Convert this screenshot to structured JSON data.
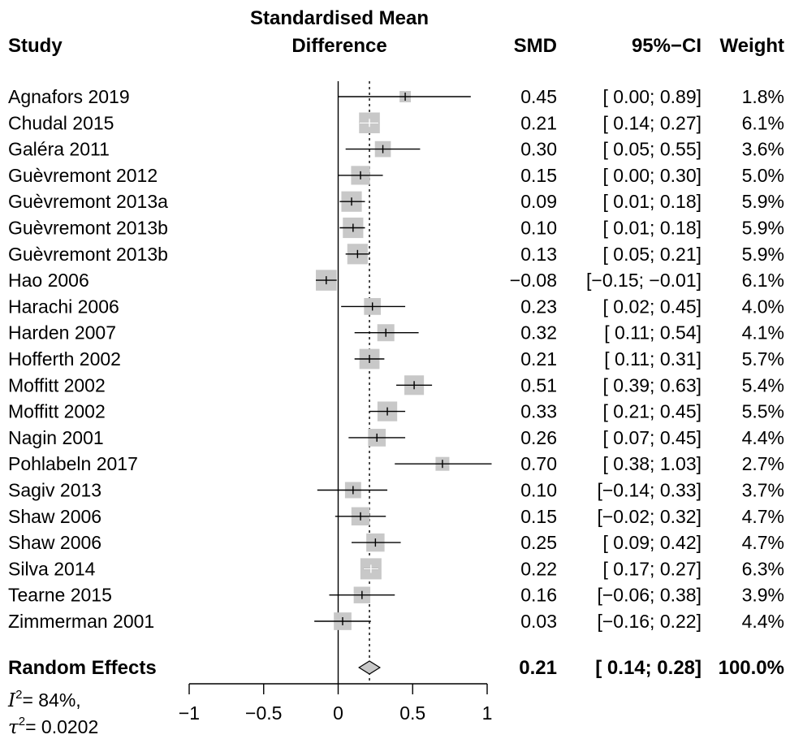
{
  "chart_data": {
    "type": "forest",
    "title": "Standardised Mean Difference",
    "title_lines": [
      "Standardised Mean",
      "Difference"
    ],
    "columns": {
      "study": "Study",
      "smd": "SMD",
      "ci": "95%−CI",
      "weight": "Weight"
    },
    "xlim": [
      -1,
      1
    ],
    "ticks": [
      -1,
      -0.5,
      0,
      0.5,
      1
    ],
    "tick_labels": [
      "−1",
      "−0.5",
      "0",
      "0.5",
      "1"
    ],
    "null_line": 0,
    "pooled_line": 0.21,
    "studies": [
      {
        "name": "Agnafors  2019",
        "smd": 0.45,
        "lower": 0.0,
        "upper": 0.89,
        "weight": 1.8,
        "smd_text": "0.45",
        "ci_text": "[ 0.00;  0.89]",
        "weight_text": "1.8%"
      },
      {
        "name": "Chudal 2015",
        "smd": 0.21,
        "lower": 0.14,
        "upper": 0.27,
        "weight": 6.1,
        "smd_text": "0.21",
        "ci_text": "[ 0.14;  0.27]",
        "weight_text": "6.1%"
      },
      {
        "name": "Galéra 2011",
        "smd": 0.3,
        "lower": 0.05,
        "upper": 0.55,
        "weight": 3.6,
        "smd_text": "0.30",
        "ci_text": "[ 0.05;  0.55]",
        "weight_text": "3.6%"
      },
      {
        "name": "Guèvremont 2012",
        "smd": 0.15,
        "lower": 0.0,
        "upper": 0.3,
        "weight": 5.0,
        "smd_text": "0.15",
        "ci_text": "[ 0.00;  0.30]",
        "weight_text": "5.0%"
      },
      {
        "name": "Guèvremont 2013a",
        "smd": 0.09,
        "lower": 0.01,
        "upper": 0.18,
        "weight": 5.9,
        "smd_text": "0.09",
        "ci_text": "[ 0.01;  0.18]",
        "weight_text": "5.9%"
      },
      {
        "name": "Guèvremont  2013b",
        "smd": 0.1,
        "lower": 0.01,
        "upper": 0.18,
        "weight": 5.9,
        "smd_text": "0.10",
        "ci_text": "[ 0.01;  0.18]",
        "weight_text": "5.9%"
      },
      {
        "name": "Guèvremont  2013b",
        "smd": 0.13,
        "lower": 0.05,
        "upper": 0.21,
        "weight": 5.9,
        "smd_text": "0.13",
        "ci_text": "[ 0.05;  0.21]",
        "weight_text": "5.9%"
      },
      {
        "name": "Hao 2006",
        "smd": -0.08,
        "lower": -0.15,
        "upper": -0.01,
        "weight": 6.1,
        "smd_text": "−0.08",
        "ci_text": "[−0.15; −0.01]",
        "weight_text": "6.1%"
      },
      {
        "name": "Harachi 2006",
        "smd": 0.23,
        "lower": 0.02,
        "upper": 0.45,
        "weight": 4.0,
        "smd_text": "0.23",
        "ci_text": "[ 0.02;  0.45]",
        "weight_text": "4.0%"
      },
      {
        "name": "Harden 2007",
        "smd": 0.32,
        "lower": 0.11,
        "upper": 0.54,
        "weight": 4.1,
        "smd_text": "0.32",
        "ci_text": "[ 0.11;  0.54]",
        "weight_text": "4.1%"
      },
      {
        "name": "Hofferth  2002",
        "smd": 0.21,
        "lower": 0.11,
        "upper": 0.31,
        "weight": 5.7,
        "smd_text": "0.21",
        "ci_text": "[ 0.11;  0.31]",
        "weight_text": "5.7%"
      },
      {
        "name": "Moffitt 2002",
        "smd": 0.51,
        "lower": 0.39,
        "upper": 0.63,
        "weight": 5.4,
        "smd_text": "0.51",
        "ci_text": "[ 0.39;  0.63]",
        "weight_text": "5.4%"
      },
      {
        "name": "Moffitt 2002",
        "smd": 0.33,
        "lower": 0.21,
        "upper": 0.45,
        "weight": 5.5,
        "smd_text": "0.33",
        "ci_text": "[ 0.21;  0.45]",
        "weight_text": "5.5%"
      },
      {
        "name": "Nagin  2001",
        "smd": 0.26,
        "lower": 0.07,
        "upper": 0.45,
        "weight": 4.4,
        "smd_text": "0.26",
        "ci_text": "[ 0.07;  0.45]",
        "weight_text": "4.4%"
      },
      {
        "name": "Pohlabeln 2017",
        "smd": 0.7,
        "lower": 0.38,
        "upper": 1.03,
        "weight": 2.7,
        "smd_text": "0.70",
        "ci_text": "[ 0.38;  1.03]",
        "weight_text": "2.7%"
      },
      {
        "name": "Sagiv 2013",
        "smd": 0.1,
        "lower": -0.14,
        "upper": 0.33,
        "weight": 3.7,
        "smd_text": "0.10",
        "ci_text": "[−0.14;  0.33]",
        "weight_text": "3.7%"
      },
      {
        "name": "Shaw 2006",
        "smd": 0.15,
        "lower": -0.02,
        "upper": 0.32,
        "weight": 4.7,
        "smd_text": "0.15",
        "ci_text": "[−0.02;  0.32]",
        "weight_text": "4.7%"
      },
      {
        "name": "Shaw 2006",
        "smd": 0.25,
        "lower": 0.09,
        "upper": 0.42,
        "weight": 4.7,
        "smd_text": "0.25",
        "ci_text": "[ 0.09;  0.42]",
        "weight_text": "4.7%"
      },
      {
        "name": "Silva 2014",
        "smd": 0.22,
        "lower": 0.17,
        "upper": 0.27,
        "weight": 6.3,
        "smd_text": "0.22",
        "ci_text": "[ 0.17;  0.27]",
        "weight_text": "6.3%"
      },
      {
        "name": "Tearne  2015",
        "smd": 0.16,
        "lower": -0.06,
        "upper": 0.38,
        "weight": 3.9,
        "smd_text": "0.16",
        "ci_text": "[−0.06;  0.38]",
        "weight_text": "3.9%"
      },
      {
        "name": "Zimmerman 2001",
        "smd": 0.03,
        "lower": -0.16,
        "upper": 0.22,
        "weight": 4.4,
        "smd_text": "0.03",
        "ci_text": "[−0.16;  0.22]",
        "weight_text": "4.4%"
      }
    ],
    "summary": {
      "name": "Random Effects",
      "smd": 0.21,
      "lower": 0.14,
      "upper": 0.28,
      "weight": 100.0,
      "smd_text": "0.21",
      "ci_text": "[ 0.14;  0.28]",
      "weight_text": "100.0%"
    },
    "heterogeneity": {
      "i2_symbol": "I",
      "i2_value": "= 84%,",
      "tau2_symbol": "τ",
      "tau2_value": "= 0.0202",
      "superscript": "2"
    },
    "colors": {
      "box": "#c8c8c8",
      "diamond": "#c8c8c8",
      "line": "#000000"
    }
  }
}
